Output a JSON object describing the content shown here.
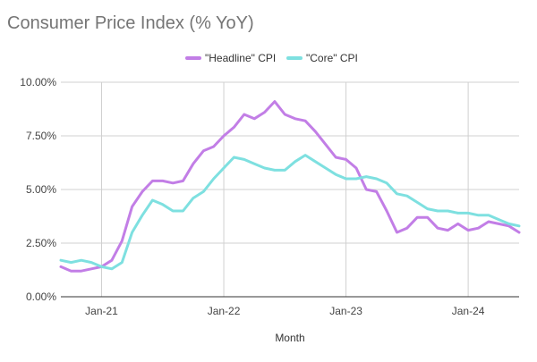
{
  "chart_data": {
    "type": "line",
    "title": "Consumer Price Index (% YoY)",
    "xlabel": "Month",
    "ylabel": "",
    "ylim": [
      0,
      10
    ],
    "ytick_values": [
      0,
      2.5,
      5,
      7.5,
      10
    ],
    "ytick_labels": [
      "0.00%",
      "2.50%",
      "5.00%",
      "7.50%",
      "10.00%"
    ],
    "x_start": "2020-09",
    "xtick_labels": [
      "Jan-21",
      "Jan-22",
      "Jan-23",
      "Jan-24"
    ],
    "xtick_indices": [
      4,
      16,
      28,
      40
    ],
    "grid": true,
    "legend_position": "top",
    "colors": {
      "headline": "#c27ee6",
      "core": "#7ee0e0",
      "grid": "#d0d0d0",
      "axis": "#333333"
    },
    "series": [
      {
        "name": "\"Headline\" CPI",
        "key": "headline",
        "values": [
          1.4,
          1.2,
          1.2,
          1.3,
          1.4,
          1.7,
          2.6,
          4.2,
          4.9,
          5.4,
          5.4,
          5.3,
          5.4,
          6.2,
          6.8,
          7.0,
          7.5,
          7.9,
          8.5,
          8.3,
          8.6,
          9.1,
          8.5,
          8.3,
          8.2,
          7.7,
          7.1,
          6.5,
          6.4,
          6.0,
          5.0,
          4.9,
          4.0,
          3.0,
          3.2,
          3.7,
          3.7,
          3.2,
          3.1,
          3.4,
          3.1,
          3.2,
          3.5,
          3.4,
          3.3,
          3.0
        ]
      },
      {
        "name": "\"Core\" CPI",
        "key": "core",
        "values": [
          1.7,
          1.6,
          1.7,
          1.6,
          1.4,
          1.3,
          1.6,
          3.0,
          3.8,
          4.5,
          4.3,
          4.0,
          4.0,
          4.6,
          4.9,
          5.5,
          6.0,
          6.5,
          6.4,
          6.2,
          6.0,
          5.9,
          5.9,
          6.3,
          6.6,
          6.3,
          6.0,
          5.7,
          5.5,
          5.5,
          5.6,
          5.5,
          5.3,
          4.8,
          4.7,
          4.4,
          4.1,
          4.0,
          4.0,
          3.9,
          3.9,
          3.8,
          3.8,
          3.6,
          3.4,
          3.3
        ]
      }
    ]
  }
}
